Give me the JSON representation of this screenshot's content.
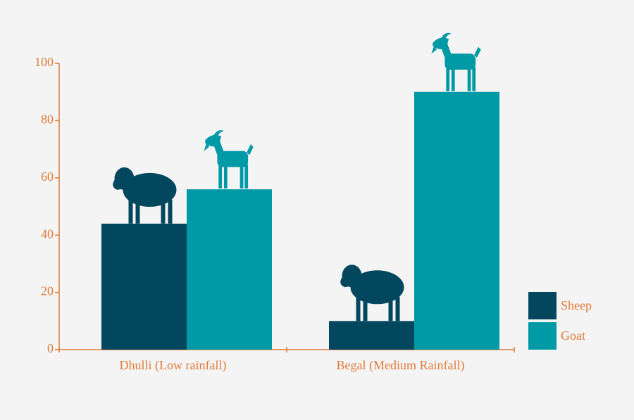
{
  "chart_data": {
    "type": "bar",
    "categories": [
      "Dhulli (Low rainfall)",
      "Begal (Medium Rainfall)"
    ],
    "series": [
      {
        "name": "Sheep",
        "color": "#02475e",
        "values": [
          44,
          10
        ]
      },
      {
        "name": "Goat",
        "color": "#0099a6",
        "values": [
          56,
          90
        ]
      }
    ],
    "ylim": [
      0,
      100
    ],
    "yticks": [
      0,
      20,
      40,
      60,
      80,
      100
    ],
    "grid": false,
    "legend": "right"
  }
}
